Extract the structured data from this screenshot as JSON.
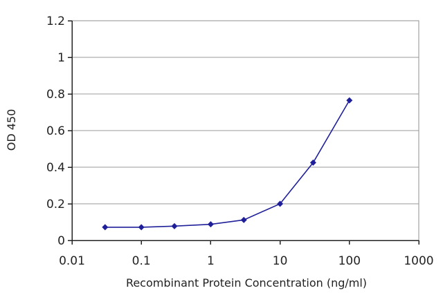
{
  "chart_data": {
    "type": "line",
    "title": "",
    "xlabel": "Recombinant Protein Concentration (ng/ml)",
    "ylabel": "OD 450",
    "x_scale": "log",
    "xlim": [
      0.01,
      1000
    ],
    "ylim": [
      0,
      1.2
    ],
    "x_ticks": [
      "0.01",
      "0.1",
      "1",
      "10",
      "100",
      "1000"
    ],
    "y_ticks": [
      "0",
      "0.2",
      "0.4",
      "0.6",
      "0.8",
      "1",
      "1.2"
    ],
    "grid": "horizontal",
    "legend": "none",
    "series": [
      {
        "x": [
          0.03,
          0.1,
          0.3,
          1,
          3,
          10,
          30,
          100
        ],
        "y": [
          0.072,
          0.072,
          0.078,
          0.088,
          0.112,
          0.2,
          0.425,
          0.765
        ],
        "color": "#1f1f99",
        "marker": "diamond"
      }
    ]
  }
}
